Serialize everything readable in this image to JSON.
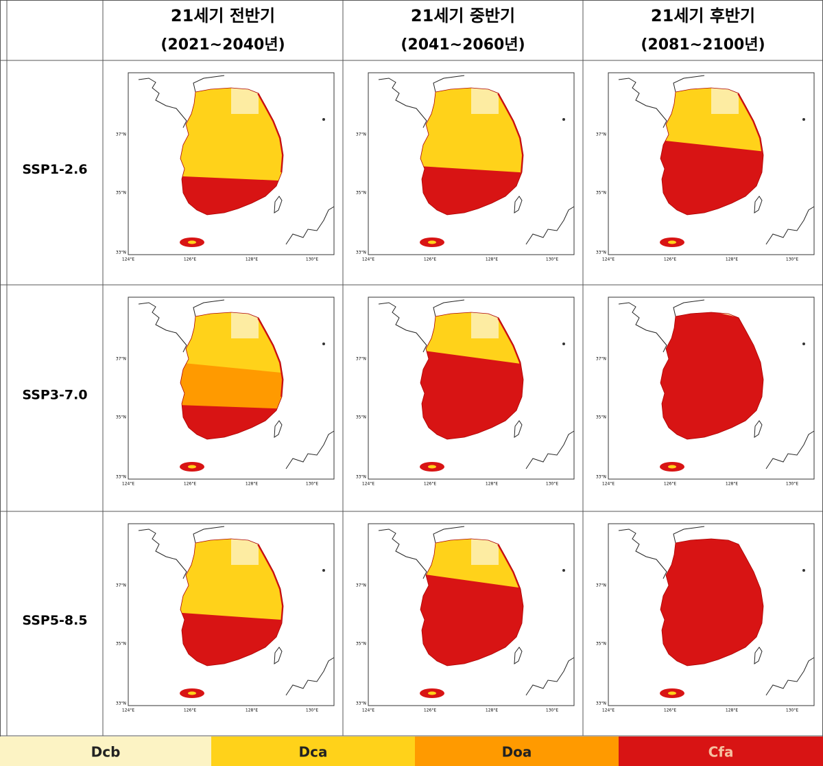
{
  "columns": [
    {
      "title": "21세기 전반기",
      "period": "(2021~2040년)"
    },
    {
      "title": "21세기 중반기",
      "period": "(2041~2060년)"
    },
    {
      "title": "21세기 후반기",
      "period": "(2081~2100년)"
    }
  ],
  "rows": [
    "SSP1-2.6",
    "SSP3-7.0",
    "SSP5-8.5"
  ],
  "map_axis": {
    "lat": [
      "37°N",
      "35°N",
      "33°N"
    ],
    "lon": [
      "124°E",
      "126°E",
      "128°E",
      "130°E"
    ]
  },
  "legend": [
    {
      "label": "Dcb",
      "color": "#fcf3c4"
    },
    {
      "label": "Dca",
      "color": "#ffd21a"
    },
    {
      "label": "Doa",
      "color": "#ff9a00"
    },
    {
      "label": "Cfa",
      "color": "#d81414"
    }
  ]
}
